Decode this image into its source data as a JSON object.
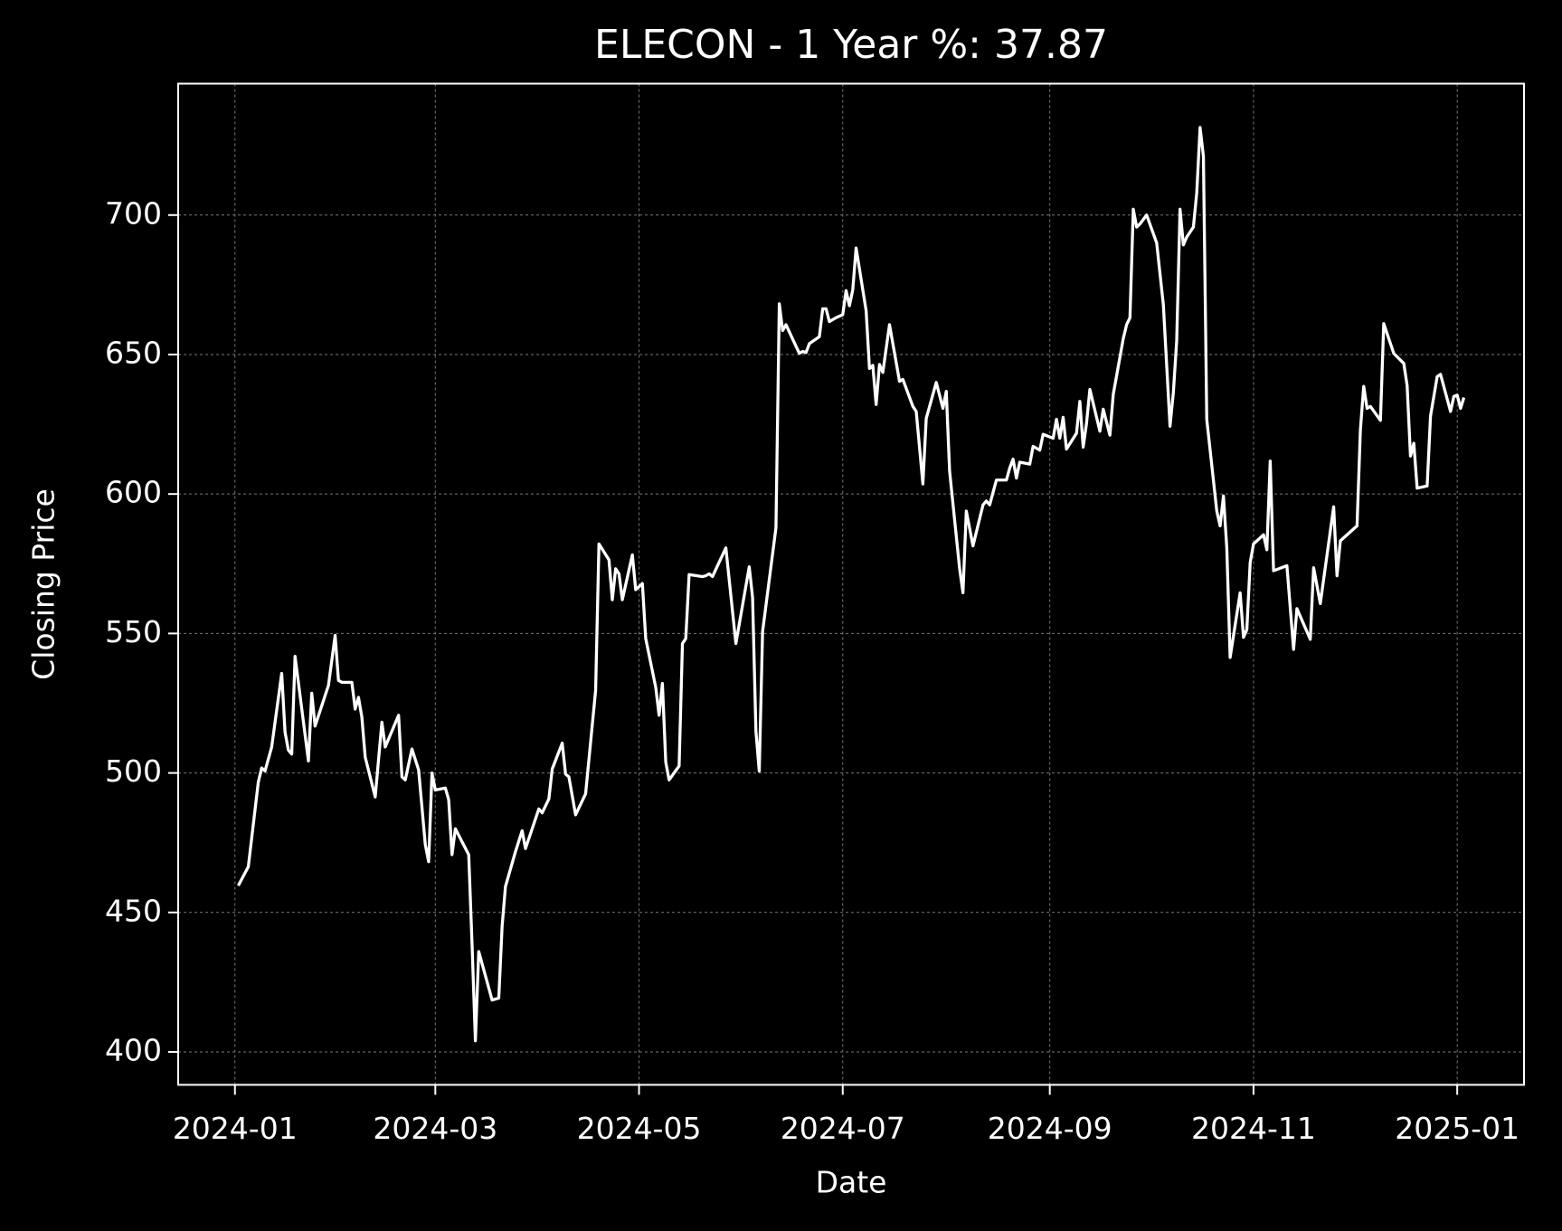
{
  "chart_data": {
    "type": "line",
    "title": "ELECON - 1 Year %: 37.87",
    "xlabel": "Date",
    "ylabel": "Closing Price",
    "color": "#ffffff",
    "grid": true,
    "xlim": [
      "2023-12-15",
      "2025-01-21"
    ],
    "xticks": [
      "2024-01",
      "2024-03",
      "2024-05",
      "2024-07",
      "2024-09",
      "2024-11",
      "2025-01"
    ],
    "ylim": [
      388.2,
      747.1
    ],
    "yticks": [
      400,
      450,
      500,
      550,
      600,
      650,
      700
    ],
    "x": [
      "2024-01-02",
      "2024-01-05",
      "2024-01-08",
      "2024-01-09",
      "2024-01-10",
      "2024-01-12",
      "2024-01-15",
      "2024-01-16",
      "2024-01-17",
      "2024-01-18",
      "2024-01-19",
      "2024-01-23",
      "2024-01-24",
      "2024-01-25",
      "2024-01-29",
      "2024-01-31",
      "2024-02-01",
      "2024-02-02",
      "2024-02-05",
      "2024-02-06",
      "2024-02-07",
      "2024-02-08",
      "2024-02-09",
      "2024-02-12",
      "2024-02-14",
      "2024-02-15",
      "2024-02-19",
      "2024-02-20",
      "2024-02-21",
      "2024-02-23",
      "2024-02-25",
      "2024-02-27",
      "2024-02-28",
      "2024-02-29",
      "2024-03-01",
      "2024-03-04",
      "2024-03-05",
      "2024-03-06",
      "2024-03-07",
      "2024-03-11",
      "2024-03-12",
      "2024-03-13",
      "2024-03-14",
      "2024-03-18",
      "2024-03-20",
      "2024-03-21",
      "2024-03-22",
      "2024-03-25",
      "2024-03-27",
      "2024-03-28",
      "2024-04-01",
      "2024-04-02",
      "2024-04-04",
      "2024-04-05",
      "2024-04-08",
      "2024-04-09",
      "2024-04-10",
      "2024-04-12",
      "2024-04-15",
      "2024-04-18",
      "2024-04-19",
      "2024-04-22",
      "2024-04-23",
      "2024-04-24",
      "2024-04-25",
      "2024-04-26",
      "2024-04-29",
      "2024-04-30",
      "2024-05-02",
      "2024-05-03",
      "2024-05-06",
      "2024-05-07",
      "2024-05-08",
      "2024-05-09",
      "2024-05-10",
      "2024-05-13",
      "2024-05-14",
      "2024-05-15",
      "2024-05-16",
      "2024-05-20",
      "2024-05-21",
      "2024-05-22",
      "2024-05-23",
      "2024-05-27",
      "2024-05-30",
      "2024-06-03",
      "2024-06-04",
      "2024-06-05",
      "2024-06-06",
      "2024-06-07",
      "2024-06-11",
      "2024-06-12",
      "2024-06-13",
      "2024-06-14",
      "2024-06-18",
      "2024-06-19",
      "2024-06-20",
      "2024-06-21",
      "2024-06-24",
      "2024-06-25",
      "2024-06-26",
      "2024-06-27",
      "2024-06-29",
      "2024-07-01",
      "2024-07-02",
      "2024-07-03",
      "2024-07-04",
      "2024-07-05",
      "2024-07-08",
      "2024-07-09",
      "2024-07-10",
      "2024-07-11",
      "2024-07-12",
      "2024-07-13",
      "2024-07-15",
      "2024-07-18",
      "2024-07-19",
      "2024-07-22",
      "2024-07-23",
      "2024-07-25",
      "2024-07-26",
      "2024-07-29",
      "2024-07-31",
      "2024-08-01",
      "2024-08-02",
      "2024-08-05",
      "2024-08-06",
      "2024-08-07",
      "2024-08-09",
      "2024-08-12",
      "2024-08-13",
      "2024-08-14",
      "2024-08-16",
      "2024-08-19",
      "2024-08-20",
      "2024-08-21",
      "2024-08-22",
      "2024-08-23",
      "2024-08-26",
      "2024-08-27",
      "2024-08-29",
      "2024-08-30",
      "2024-09-02",
      "2024-09-03",
      "2024-09-04",
      "2024-09-05",
      "2024-09-06",
      "2024-09-09",
      "2024-09-10",
      "2024-09-11",
      "2024-09-12",
      "2024-09-13",
      "2024-09-16",
      "2024-09-17",
      "2024-09-19",
      "2024-09-20",
      "2024-09-23",
      "2024-09-24",
      "2024-09-25",
      "2024-09-26",
      "2024-09-27",
      "2024-09-28",
      "2024-09-30",
      "2024-10-03",
      "2024-10-05",
      "2024-10-07",
      "2024-10-08",
      "2024-10-09",
      "2024-10-10",
      "2024-10-11",
      "2024-10-12",
      "2024-10-14",
      "2024-10-15",
      "2024-10-16",
      "2024-10-17",
      "2024-10-18",
      "2024-10-21",
      "2024-10-22",
      "2024-10-23",
      "2024-10-24",
      "2024-10-25",
      "2024-10-28",
      "2024-10-29",
      "2024-10-30",
      "2024-10-31",
      "2024-11-01",
      "2024-11-04",
      "2024-11-05",
      "2024-11-06",
      "2024-11-07",
      "2024-11-11",
      "2024-11-13",
      "2024-11-14",
      "2024-11-18",
      "2024-11-19",
      "2024-11-21",
      "2024-11-25",
      "2024-11-26",
      "2024-11-27",
      "2024-11-28",
      "2024-12-02",
      "2024-12-03",
      "2024-12-04",
      "2024-12-05",
      "2024-12-06",
      "2024-12-09",
      "2024-12-10",
      "2024-12-11",
      "2024-12-13",
      "2024-12-16",
      "2024-12-17",
      "2024-12-18",
      "2024-12-19",
      "2024-12-20",
      "2024-12-23",
      "2024-12-24",
      "2024-12-26",
      "2024-12-27",
      "2024-12-30",
      "2024-12-31",
      "2025-01-01",
      "2025-01-02",
      "2025-01-03"
    ],
    "values": [
      459.6,
      466.4,
      496.8,
      501.8,
      500.7,
      509.3,
      535.7,
      514.6,
      508.2,
      506.8,
      541.8,
      504.3,
      528.6,
      516.8,
      531.4,
      549.3,
      533.2,
      532.5,
      532.5,
      522.9,
      527.1,
      520,
      505.7,
      491.4,
      518.2,
      509.3,
      520.7,
      498.6,
      497.5,
      508.6,
      501.1,
      474.3,
      468.2,
      500,
      493.9,
      494.6,
      490.4,
      470.7,
      480,
      470.7,
      438.6,
      404,
      436,
      418.6,
      419.3,
      445,
      459.3,
      471.8,
      479.3,
      472.9,
      487.1,
      485.7,
      490.7,
      501.4,
      510.7,
      499.6,
      498.6,
      485,
      492.5,
      529.6,
      582.1,
      576.4,
      562.1,
      573.2,
      571.4,
      562.1,
      578.2,
      565.7,
      567.9,
      548.2,
      530.7,
      520.7,
      532.1,
      503.9,
      497.5,
      502.5,
      546.4,
      548.2,
      571.1,
      570.4,
      570.7,
      571.4,
      570.4,
      580.7,
      546.4,
      573.9,
      562.9,
      515,
      500.7,
      550.7,
      587.9,
      668.2,
      658.6,
      660.7,
      650.4,
      651.1,
      650.7,
      653.9,
      656.4,
      666.4,
      666.4,
      661.8,
      663.2,
      664.3,
      672.9,
      667.5,
      673.2,
      688.2,
      665.7,
      645,
      646.1,
      632.1,
      646.4,
      643.6,
      660.7,
      640.4,
      641.1,
      631.4,
      629.6,
      603.6,
      627.1,
      640,
      630.7,
      636.8,
      608.2,
      573.2,
      564.6,
      593.9,
      581.4,
      596.1,
      597.5,
      596.1,
      605,
      605,
      609.3,
      612.5,
      605.7,
      611.4,
      610.7,
      617.1,
      615.7,
      621.4,
      620,
      626.8,
      620,
      627.5,
      616.1,
      621.8,
      633.2,
      616.8,
      625.4,
      637.5,
      622.5,
      630.4,
      621.1,
      635.7,
      655.7,
      660.7,
      663.2,
      702.1,
      695.7,
      696.8,
      700,
      690,
      667.9,
      624.3,
      636.4,
      655,
      702.1,
      689.3,
      692.1,
      695.7,
      707.9,
      731.4,
      721.1,
      626.8,
      593.9,
      588.6,
      599.3,
      580.7,
      541.4,
      564.6,
      548.6,
      551.4,
      575.4,
      582.1,
      585.4,
      580,
      611.8,
      572.5,
      574.3,
      544.3,
      558.9,
      547.9,
      573.6,
      560.7,
      595.4,
      570.7,
      583.2,
      584.3,
      588.6,
      622.9,
      638.6,
      630.7,
      631.4,
      626.4,
      661.1,
      657.5,
      650.4,
      646.8,
      638.9,
      613.6,
      618.2,
      602.1,
      602.9,
      627.9,
      642.1,
      642.9,
      629.6,
      635,
      635.4,
      630.7,
      634.6
    ]
  }
}
